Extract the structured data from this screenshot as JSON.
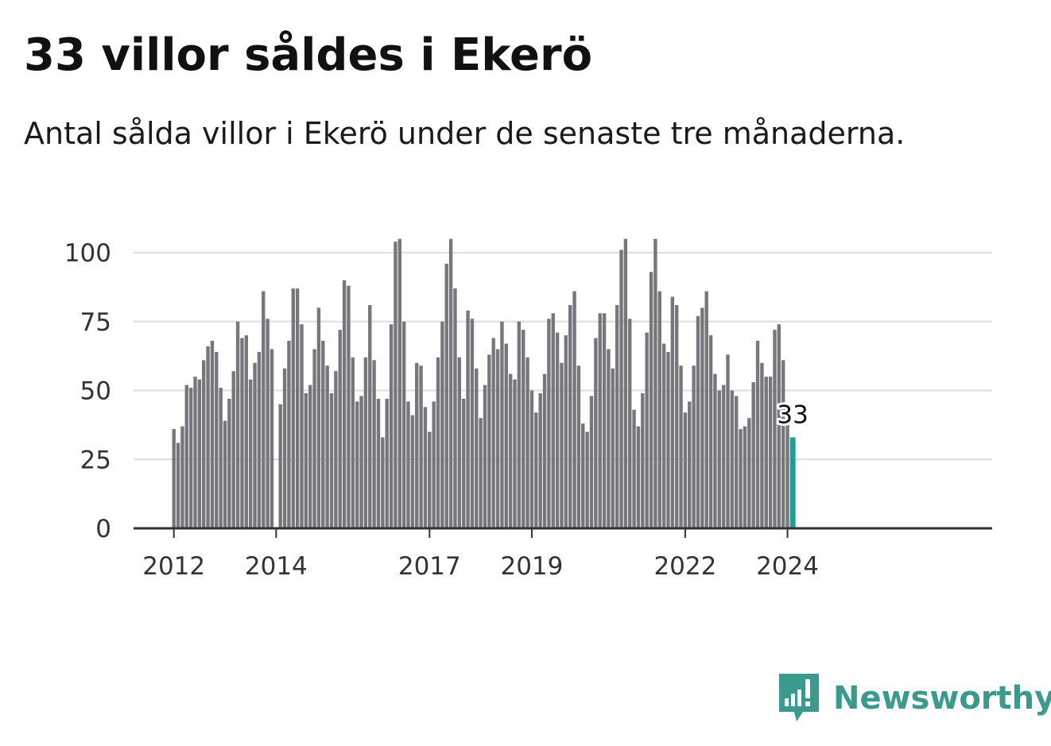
{
  "title": "33 villor såldes i Ekerö",
  "subtitle": "Antal sålda villor i Ekerö under de senaste tre månaderna.",
  "brand": {
    "name": "Newsworthy",
    "icon": "newsworthy-logo-icon",
    "color": "#3a9a8e"
  },
  "colors": {
    "bar": "#77767b",
    "highlight": "#1f9e96",
    "grid": "#dddddd",
    "axis": "#333333"
  },
  "chart_data": {
    "type": "bar",
    "x_unit": "month",
    "start": "2012-01",
    "ylim": [
      0,
      105
    ],
    "yticks": [
      0,
      25,
      50,
      75,
      100
    ],
    "xticks": [
      "2012",
      "2014",
      "2017",
      "2019",
      "2022",
      "2024"
    ],
    "grid": true,
    "values": [
      36,
      31,
      37,
      52,
      51,
      55,
      54,
      61,
      66,
      68,
      64,
      51,
      39,
      47,
      57,
      75,
      69,
      70,
      54,
      60,
      64,
      86,
      76,
      65,
      0,
      45,
      58,
      68,
      87,
      87,
      74,
      49,
      52,
      65,
      80,
      68,
      59,
      49,
      57,
      72,
      90,
      88,
      62,
      46,
      48,
      62,
      81,
      61,
      47,
      33,
      47,
      74,
      104,
      105,
      75,
      46,
      41,
      60,
      59,
      44,
      35,
      46,
      62,
      75,
      96,
      105,
      87,
      62,
      47,
      79,
      76,
      58,
      40,
      52,
      63,
      69,
      65,
      75,
      67,
      56,
      54,
      75,
      72,
      62,
      50,
      42,
      49,
      56,
      76,
      78,
      71,
      60,
      70,
      81,
      86,
      59,
      38,
      35,
      48,
      69,
      78,
      78,
      65,
      58,
      81,
      101,
      105,
      76,
      43,
      37,
      49,
      71,
      93,
      105,
      86,
      67,
      64,
      84,
      81,
      59,
      42,
      46,
      59,
      77,
      80,
      86,
      70,
      56,
      50,
      52,
      63,
      50,
      48,
      36,
      37,
      40,
      53,
      68,
      60,
      55,
      55,
      72,
      74,
      61,
      38,
      33
    ],
    "highlight_last": true,
    "last_label": "33"
  }
}
